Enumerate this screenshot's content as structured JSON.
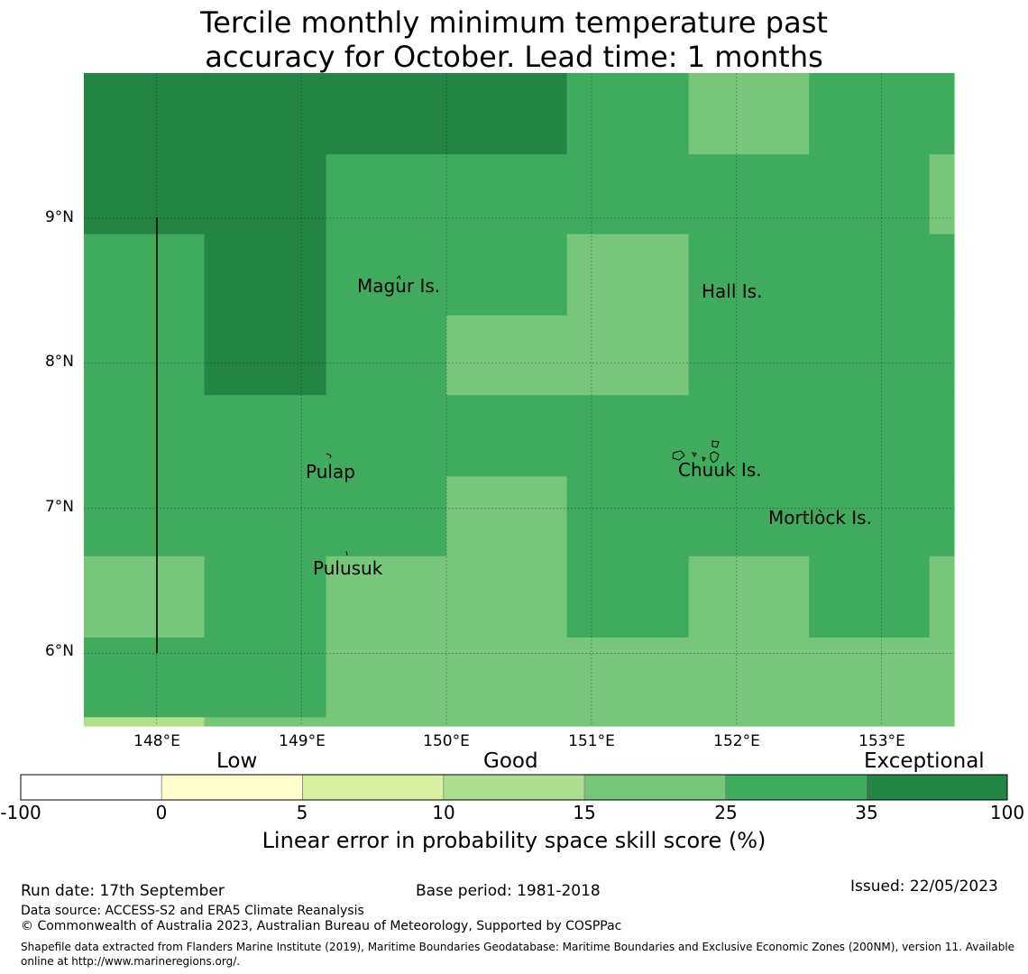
{
  "title_lines": [
    "Tercile monthly minimum temperature past",
    "accuracy for October. Lead time: 1 months"
  ],
  "map": {
    "lon_range": [
      147.5,
      153.5
    ],
    "lat_range": [
      5.5,
      10.0
    ],
    "lat_ticks": [
      {
        "value": 9,
        "label": "9°N"
      },
      {
        "value": 8,
        "label": "8°N"
      },
      {
        "value": 7,
        "label": "7°N"
      },
      {
        "value": 6,
        "label": "6°N"
      }
    ],
    "lon_ticks": [
      {
        "value": 148,
        "label": "148°E"
      },
      {
        "value": 149,
        "label": "149°E"
      },
      {
        "value": 150,
        "label": "150°E"
      },
      {
        "value": 151,
        "label": "151°E"
      },
      {
        "value": 152,
        "label": "152°E"
      },
      {
        "value": 153,
        "label": "153°E"
      }
    ],
    "place_labels": [
      {
        "name": "Magur Is.",
        "lon": 149.66,
        "lat": 8.53
      },
      {
        "name": "Hall Is.",
        "lon": 151.97,
        "lat": 8.49
      },
      {
        "name": "Pulap",
        "lon": 149.21,
        "lat": 7.21
      },
      {
        "name": "Chuuk Is.",
        "lon": 151.86,
        "lat": 7.23
      },
      {
        "name": "Mortlock Is.",
        "lon": 152.59,
        "lat": 6.9
      },
      {
        "name": "Pulusuk",
        "lon": 149.33,
        "lat": 6.56
      }
    ],
    "skill_colors": {
      "light": "#b2df8a",
      "medium": "#78c679",
      "strong": "#41ab5d",
      "exceptional": "#238443"
    },
    "skill_grid": {
      "lon_edges": [
        147.5,
        148.33,
        149.17,
        150.0,
        150.83,
        151.67,
        152.5,
        153.33,
        153.5
      ],
      "lat_edges": [
        10.0,
        9.44,
        8.89,
        8.33,
        7.78,
        7.22,
        6.67,
        6.11,
        5.56,
        5.5
      ],
      "rows": [
        [
          "exceptional",
          "exceptional",
          "exceptional",
          "exceptional",
          "strong",
          "medium",
          "strong",
          "strong"
        ],
        [
          "exceptional",
          "exceptional",
          "strong",
          "strong",
          "strong",
          "strong",
          "strong",
          "medium"
        ],
        [
          "strong",
          "exceptional",
          "strong",
          "strong",
          "medium",
          "strong",
          "strong",
          "strong"
        ],
        [
          "strong",
          "exceptional",
          "strong",
          "medium",
          "medium",
          "strong",
          "strong",
          "strong"
        ],
        [
          "strong",
          "strong",
          "strong",
          "strong",
          "strong",
          "strong",
          "strong",
          "strong"
        ],
        [
          "strong",
          "strong",
          "strong",
          "medium",
          "strong",
          "strong",
          "strong",
          "strong"
        ],
        [
          "medium",
          "strong",
          "medium",
          "medium",
          "strong",
          "medium",
          "strong",
          "medium"
        ],
        [
          "strong",
          "strong",
          "medium",
          "medium",
          "medium",
          "medium",
          "medium",
          "medium"
        ],
        [
          "light",
          "medium",
          "medium",
          "medium",
          "medium",
          "medium",
          "medium",
          "medium"
        ]
      ]
    }
  },
  "colorbar": {
    "categories": [
      "Low",
      "Good",
      "Exceptional"
    ],
    "ticks": [
      "-100",
      "0",
      "5",
      "10",
      "15",
      "25",
      "35",
      "100"
    ],
    "colors": [
      "#ffffff",
      "#ffffcc",
      "#d9f0a3",
      "#addd8e",
      "#78c679",
      "#41ab5d",
      "#238443"
    ],
    "label": "Linear error in probability space skill score (%)"
  },
  "footer": {
    "run_date": "Run date: 17th September",
    "base_period": "Base period: 1981-2018",
    "issued": "Issued: 22/05/2023",
    "data_source": "Data source: ACCESS-S2 and ERA5 Climate Reanalysis",
    "copyright": "© Commonwealth of Australia 2023, Australian Bureau of Meteorology, Supported by COSPPac",
    "shapefile": "Shapefile data extracted from Flanders Marine Institute (2019), Maritime Boundaries Geodatabase: Maritime Boundaries and Exclusive Economic Zones (200NM), version 11. Available online at http://www.marineregions.org/."
  }
}
